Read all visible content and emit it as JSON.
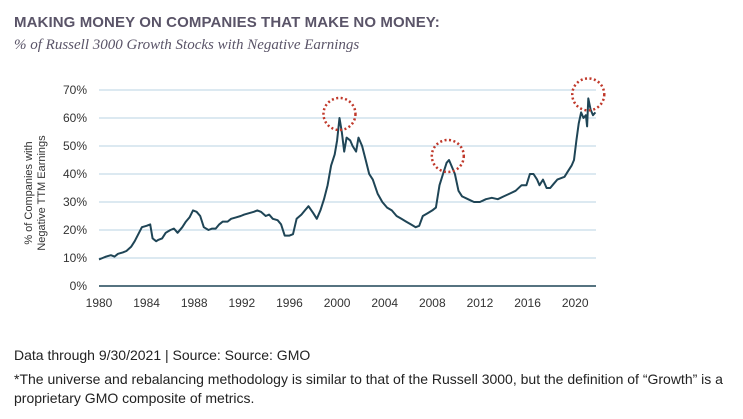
{
  "header": {
    "title": "MAKING MONEY ON COMPANIES THAT MAKE NO MONEY:",
    "subtitle": "% of Russell 3000 Growth Stocks with Negative Earnings"
  },
  "footer": {
    "source": "Data through 9/30/2021 | Source: Source: GMO",
    "note": "*The universe and rebalancing methodology is similar to that of the Russell 3000, but the definition of “Growth” is a proprietary GMO composite of metrics."
  },
  "colors": {
    "line": "#1f4556",
    "grid": "#b9d3e3",
    "highlight": "#c0392b",
    "title": "#5a5468"
  },
  "chart_data": {
    "type": "line",
    "title": "% of Russell 3000 Growth Stocks with Negative Earnings",
    "ylabel_line1": "% of Companies with",
    "ylabel_line2": "Negative TTM Earnings",
    "xlim": [
      1980,
      2021.75
    ],
    "ylim": [
      0,
      70
    ],
    "x_ticks": [
      "1980",
      "1984",
      "1988",
      "1992",
      "1996",
      "2000",
      "2004",
      "2008",
      "2012",
      "2016",
      "2020"
    ],
    "y_ticks": [
      "0%",
      "10%",
      "20%",
      "30%",
      "40%",
      "50%",
      "60%",
      "70%"
    ],
    "grid": true,
    "highlighted_peaks": [
      [
        2000.2,
        60
      ],
      [
        2009.3,
        45
      ],
      [
        2021.1,
        67
      ]
    ],
    "series": [
      {
        "points": [
          [
            1980.0,
            9.5
          ],
          [
            1980.3,
            10
          ],
          [
            1980.6,
            10.5
          ],
          [
            1981.0,
            11
          ],
          [
            1981.3,
            10.5
          ],
          [
            1981.6,
            11.5
          ],
          [
            1982.0,
            12
          ],
          [
            1982.3,
            12.5
          ],
          [
            1982.7,
            14
          ],
          [
            1983.0,
            16
          ],
          [
            1983.3,
            18.5
          ],
          [
            1983.6,
            21
          ],
          [
            1984.0,
            21.5
          ],
          [
            1984.3,
            22
          ],
          [
            1984.5,
            17
          ],
          [
            1984.8,
            16
          ],
          [
            1985.0,
            16.5
          ],
          [
            1985.3,
            17
          ],
          [
            1985.6,
            19
          ],
          [
            1986.0,
            20
          ],
          [
            1986.3,
            20.5
          ],
          [
            1986.6,
            19
          ],
          [
            1987.0,
            21
          ],
          [
            1987.3,
            23
          ],
          [
            1987.6,
            24.5
          ],
          [
            1987.9,
            27
          ],
          [
            1988.2,
            26.5
          ],
          [
            1988.5,
            25
          ],
          [
            1988.8,
            21
          ],
          [
            1989.2,
            20
          ],
          [
            1989.5,
            20.5
          ],
          [
            1989.8,
            20.5
          ],
          [
            1990.1,
            22
          ],
          [
            1990.4,
            23
          ],
          [
            1990.8,
            23
          ],
          [
            1991.1,
            24
          ],
          [
            1991.5,
            24.5
          ],
          [
            1991.9,
            25
          ],
          [
            1992.2,
            25.5
          ],
          [
            1992.6,
            26
          ],
          [
            1993.0,
            26.5
          ],
          [
            1993.3,
            27
          ],
          [
            1993.6,
            26.5
          ],
          [
            1994.0,
            25
          ],
          [
            1994.3,
            25.5
          ],
          [
            1994.6,
            24
          ],
          [
            1995.0,
            23.5
          ],
          [
            1995.3,
            22
          ],
          [
            1995.6,
            18
          ],
          [
            1996.0,
            18
          ],
          [
            1996.3,
            18.5
          ],
          [
            1996.6,
            24
          ],
          [
            1997.0,
            25.5
          ],
          [
            1997.3,
            27
          ],
          [
            1997.6,
            28.5
          ],
          [
            1998.0,
            26
          ],
          [
            1998.3,
            24
          ],
          [
            1998.6,
            27
          ],
          [
            1998.9,
            31
          ],
          [
            1999.2,
            36
          ],
          [
            1999.5,
            43
          ],
          [
            1999.8,
            47
          ],
          [
            2000.0,
            52
          ],
          [
            2000.2,
            60
          ],
          [
            2000.4,
            55
          ],
          [
            2000.6,
            48
          ],
          [
            2000.8,
            53
          ],
          [
            2001.1,
            52
          ],
          [
            2001.3,
            50
          ],
          [
            2001.6,
            48
          ],
          [
            2001.8,
            53
          ],
          [
            2002.1,
            50
          ],
          [
            2002.4,
            45
          ],
          [
            2002.7,
            40
          ],
          [
            2003.0,
            38
          ],
          [
            2003.4,
            33
          ],
          [
            2003.8,
            30
          ],
          [
            2004.2,
            28
          ],
          [
            2004.6,
            27
          ],
          [
            2005.0,
            25
          ],
          [
            2005.4,
            24
          ],
          [
            2005.8,
            23
          ],
          [
            2006.2,
            22
          ],
          [
            2006.6,
            21
          ],
          [
            2006.9,
            21.5
          ],
          [
            2007.2,
            25
          ],
          [
            2007.6,
            26
          ],
          [
            2008.0,
            27
          ],
          [
            2008.3,
            28
          ],
          [
            2008.6,
            36
          ],
          [
            2008.9,
            40
          ],
          [
            2009.2,
            44
          ],
          [
            2009.4,
            45
          ],
          [
            2009.6,
            43
          ],
          [
            2009.9,
            40
          ],
          [
            2010.2,
            34
          ],
          [
            2010.5,
            32
          ],
          [
            2011.0,
            31
          ],
          [
            2011.5,
            30
          ],
          [
            2012.0,
            30
          ],
          [
            2012.5,
            31
          ],
          [
            2013.0,
            31.5
          ],
          [
            2013.5,
            31
          ],
          [
            2014.0,
            32
          ],
          [
            2014.5,
            33
          ],
          [
            2015.0,
            34
          ],
          [
            2015.5,
            36
          ],
          [
            2015.9,
            36
          ],
          [
            2016.2,
            40
          ],
          [
            2016.5,
            40
          ],
          [
            2016.8,
            38
          ],
          [
            2017.0,
            36
          ],
          [
            2017.3,
            38
          ],
          [
            2017.6,
            35
          ],
          [
            2017.9,
            35
          ],
          [
            2018.2,
            36.5
          ],
          [
            2018.5,
            38
          ],
          [
            2018.8,
            38.5
          ],
          [
            2019.1,
            39
          ],
          [
            2019.4,
            41
          ],
          [
            2019.7,
            43
          ],
          [
            2019.9,
            45
          ],
          [
            2020.1,
            52
          ],
          [
            2020.3,
            58
          ],
          [
            2020.5,
            62
          ],
          [
            2020.7,
            60
          ],
          [
            2020.9,
            61
          ],
          [
            2021.0,
            57
          ],
          [
            2021.1,
            67
          ],
          [
            2021.3,
            63
          ],
          [
            2021.5,
            61
          ],
          [
            2021.7,
            62
          ]
        ]
      }
    ]
  }
}
